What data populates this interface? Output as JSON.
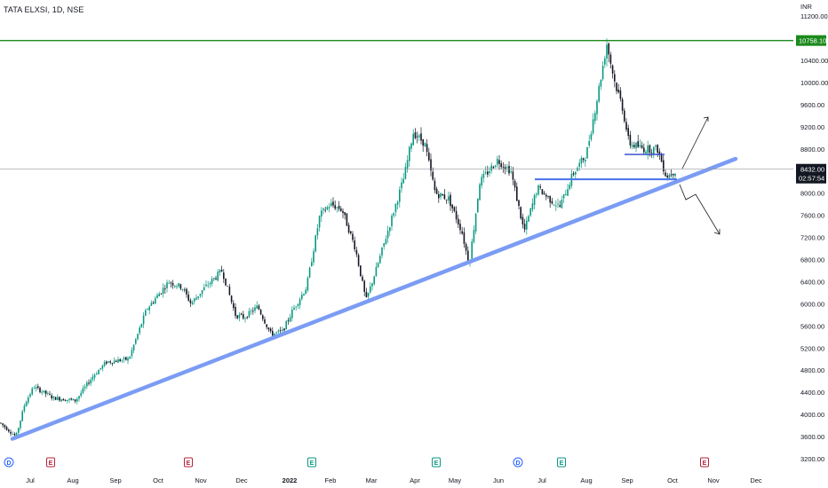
{
  "header": {
    "title": "TATA ELXSI, 1D, NSE"
  },
  "price_scale": {
    "currency": "INR"
  },
  "chart_data": {
    "type": "candlestick",
    "title": "TATA ELXSI, 1D, NSE",
    "currency": "INR",
    "ylim": [
      3000,
      11800
    ],
    "y_ticks": [
      3200,
      3600,
      4000,
      4400,
      4800,
      5200,
      5600,
      6000,
      6400,
      6800,
      7200,
      7600,
      8000,
      8400,
      8800,
      9200,
      9600,
      10000,
      10400,
      11200
    ],
    "x_ticks": [
      "Jul",
      "Aug",
      "Sep",
      "Oct",
      "Nov",
      "Dec",
      "2022",
      "Feb",
      "Mar",
      "Apr",
      "May",
      "Jun",
      "Jul",
      "Aug",
      "Sep",
      "Oct",
      "Nov",
      "Dec"
    ],
    "horizontal_levels": [
      {
        "label": "10758.10",
        "value": 10758.1,
        "color": "#1b8a1b"
      },
      {
        "label": "8432.00",
        "value": 8432.0,
        "color": "#131722"
      }
    ],
    "countdown": "02:57:54",
    "anchors": [
      [
        0,
        3850
      ],
      [
        18,
        3600
      ],
      [
        28,
        4200
      ],
      [
        38,
        4500
      ],
      [
        60,
        4300
      ],
      [
        85,
        4250
      ],
      [
        105,
        4700
      ],
      [
        120,
        4950
      ],
      [
        145,
        5000
      ],
      [
        165,
        5900
      ],
      [
        190,
        6400
      ],
      [
        205,
        6300
      ],
      [
        215,
        6000
      ],
      [
        228,
        6250
      ],
      [
        250,
        6600
      ],
      [
        265,
        5800
      ],
      [
        275,
        5750
      ],
      [
        290,
        5950
      ],
      [
        305,
        5450
      ],
      [
        318,
        5500
      ],
      [
        330,
        5900
      ],
      [
        345,
        6300
      ],
      [
        360,
        7600
      ],
      [
        372,
        7800
      ],
      [
        385,
        7700
      ],
      [
        400,
        7000
      ],
      [
        412,
        6050
      ],
      [
        425,
        6700
      ],
      [
        440,
        7500
      ],
      [
        455,
        8300
      ],
      [
        465,
        9100
      ],
      [
        478,
        8900
      ],
      [
        490,
        8000
      ],
      [
        505,
        7900
      ],
      [
        520,
        7300
      ],
      [
        528,
        6700
      ],
      [
        540,
        8200
      ],
      [
        560,
        8600
      ],
      [
        575,
        8400
      ],
      [
        590,
        7300
      ],
      [
        605,
        8100
      ],
      [
        618,
        7900
      ],
      [
        630,
        7750
      ],
      [
        645,
        8350
      ],
      [
        660,
        8700
      ],
      [
        672,
        9700
      ],
      [
        683,
        10700
      ],
      [
        692,
        10000
      ],
      [
        700,
        9600
      ],
      [
        708,
        8900
      ],
      [
        725,
        8800
      ],
      [
        740,
        8800
      ],
      [
        750,
        8300
      ],
      [
        762,
        8432
      ]
    ],
    "trendlines": [
      {
        "name": "rising support",
        "from": [
          "Jun 2021",
          3560
        ],
        "to": [
          "Oct 2022",
          8620
        ],
        "color": "#7b9cf4"
      },
      {
        "name": "horizontal support",
        "from": [
          "Jul 2022",
          8250
        ],
        "to": [
          "Oct 2022",
          8250
        ],
        "color": "#4f78ea"
      },
      {
        "name": "resistance",
        "from": [
          "Sep 2022",
          8700
        ],
        "to": [
          "Oct 2022",
          8700
        ],
        "color": "#2a43c9"
      }
    ],
    "projections": [
      {
        "name": "bullish-arrow",
        "direction": "up"
      },
      {
        "name": "bearish-arrow",
        "direction": "down"
      }
    ],
    "events": [
      {
        "type": "dividend",
        "label": "D",
        "x_index": 10,
        "color": "#2962ff"
      },
      {
        "type": "earnings",
        "label": "E",
        "x_index": 57,
        "color": "#b2243a"
      },
      {
        "type": "earnings",
        "label": "E",
        "x_index": 212,
        "color": "#b2243a"
      },
      {
        "type": "earnings",
        "label": "E",
        "x_index": 351,
        "color": "#089981"
      },
      {
        "type": "earnings",
        "label": "E",
        "x_index": 491,
        "color": "#089981"
      },
      {
        "type": "dividend",
        "label": "D",
        "x_index": 583,
        "color": "#2962ff"
      },
      {
        "type": "earnings",
        "label": "E",
        "x_index": 632,
        "color": "#089981"
      },
      {
        "type": "earnings",
        "label": "E",
        "x_index": 793,
        "color": "#b2243a"
      }
    ]
  },
  "colors": {
    "up": "#089981",
    "down": "#131722",
    "background": "#ffffff"
  }
}
